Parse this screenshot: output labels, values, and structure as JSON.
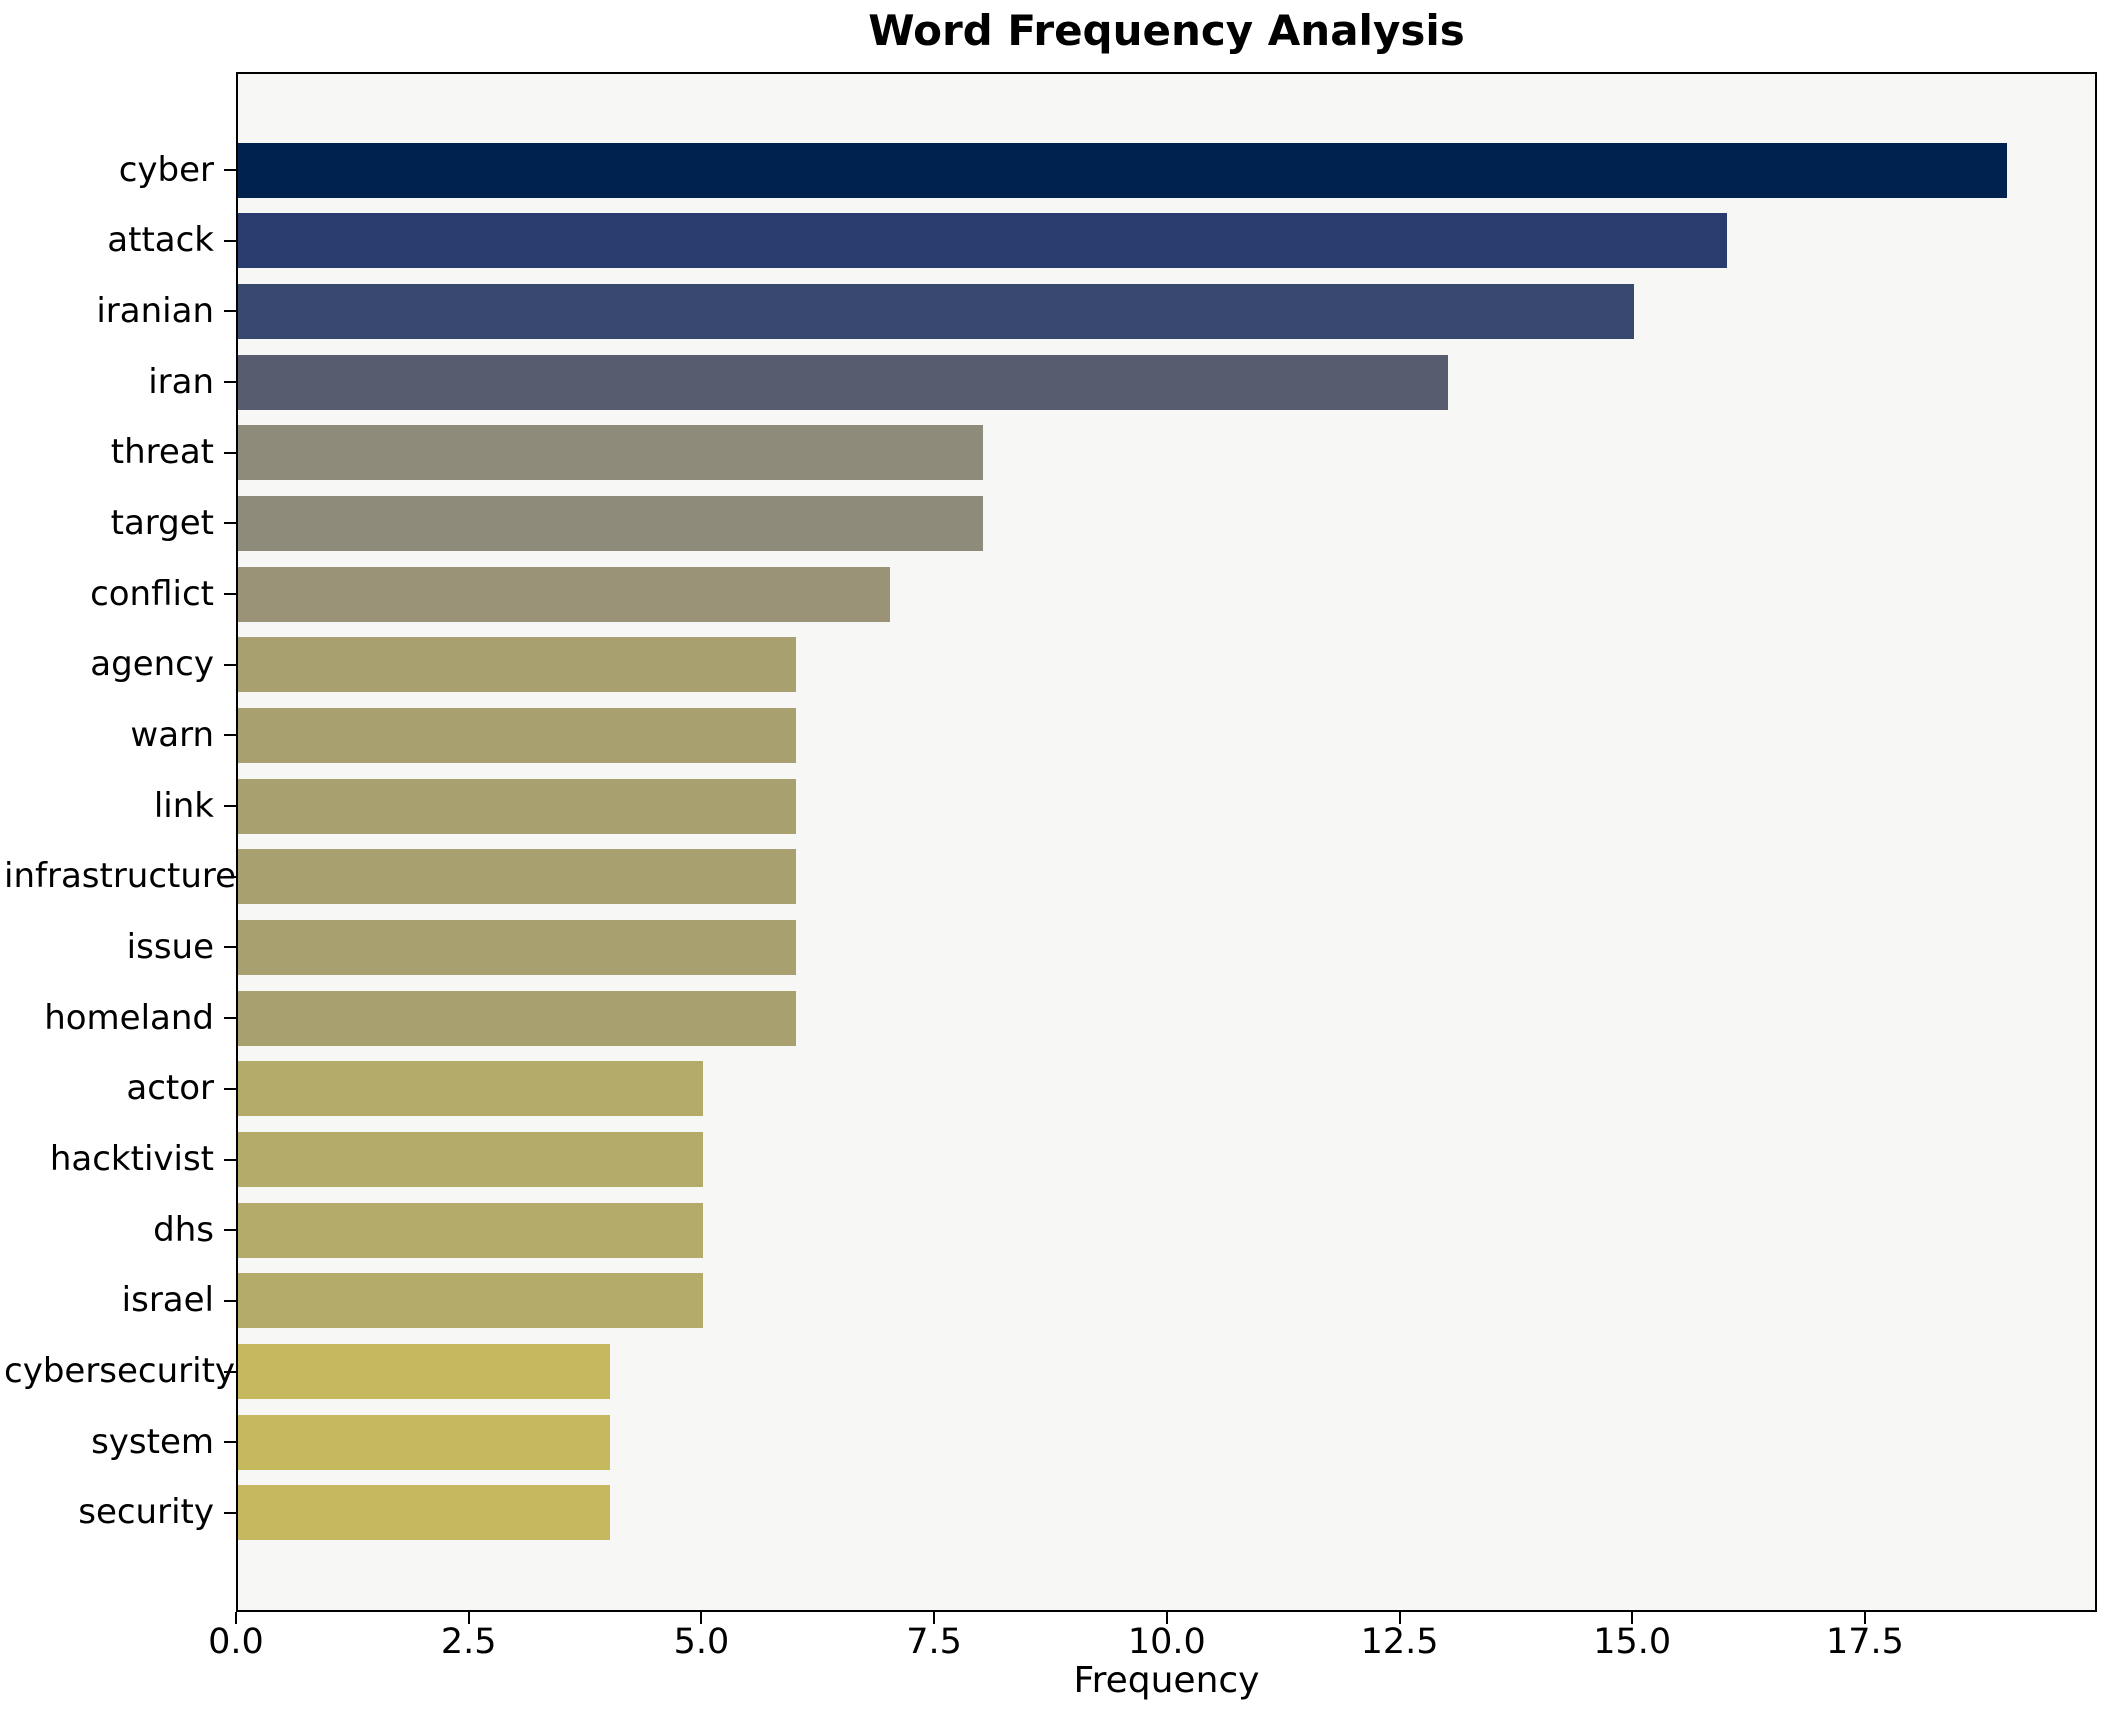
{
  "figure": {
    "background": "#ffffff"
  },
  "chart_data": {
    "type": "bar",
    "orientation": "horizontal",
    "title": "Word Frequency Analysis",
    "xlabel": "Frequency",
    "ylabel": "",
    "categories": [
      "cyber",
      "attack",
      "iranian",
      "iran",
      "threat",
      "target",
      "conflict",
      "agency",
      "warn",
      "link",
      "infrastructure",
      "issue",
      "homeland",
      "actor",
      "hacktivist",
      "dhs",
      "israel",
      "cybersecurity",
      "system",
      "security"
    ],
    "values": [
      19,
      16,
      15,
      13,
      8,
      8,
      7,
      6,
      6,
      6,
      6,
      6,
      6,
      5,
      5,
      5,
      5,
      4,
      4,
      4
    ],
    "bar_colors": [
      "#00224e",
      "#2a3c6d",
      "#39486f",
      "#575d6e",
      "#8f8b7b",
      "#8f8b7b",
      "#9a9377",
      "#a8a06f",
      "#a8a06f",
      "#a8a06f",
      "#a8a06f",
      "#a8a06f",
      "#a8a06f",
      "#b4ab6b",
      "#b4ab6b",
      "#b4ab6b",
      "#b4ab6b",
      "#c6b85e",
      "#c6b85e",
      "#c6b85e"
    ],
    "xlim": [
      0,
      19.95
    ],
    "x_tick_values": [
      0,
      2.5,
      5,
      7.5,
      10,
      12.5,
      15,
      17.5
    ],
    "x_tick_labels": [
      "0.0",
      "2.5",
      "5.0",
      "7.5",
      "10.0",
      "12.5",
      "15.0",
      "17.5"
    ],
    "grid": false,
    "legend": "none",
    "plot_background": "#f7f7f6",
    "axis_color": "#000000"
  }
}
